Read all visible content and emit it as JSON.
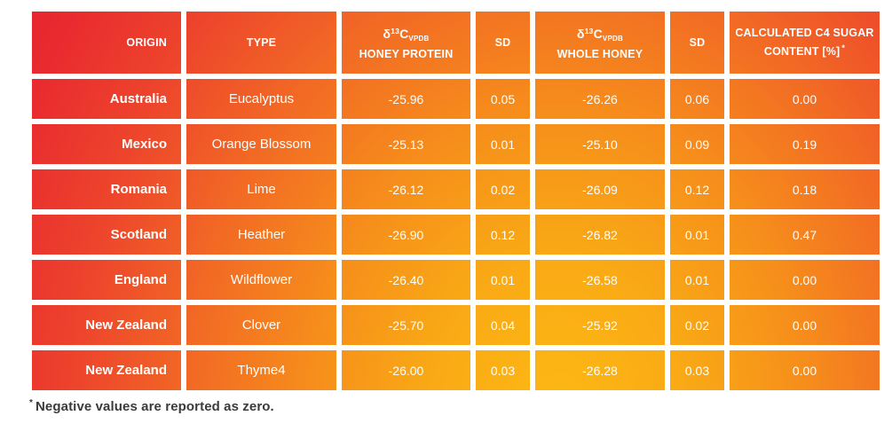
{
  "table": {
    "header": {
      "origin": "ORIGIN",
      "type": "TYPE",
      "sd": "SD",
      "delta_symbol": "δ",
      "delta_superscript": "13",
      "delta_element": "C",
      "delta_subscript": "VPDB",
      "honey_protein_line": "HONEY PROTEIN",
      "whole_honey_line": "WHOLE HONEY",
      "calculated_label": "CALCULATED C4 SUGAR CONTENT [%]",
      "calculated_footnote_symbol": "*"
    }
  },
  "chart_data": {
    "type": "table",
    "columns": [
      "ORIGIN",
      "TYPE",
      "δ13C VPDB HONEY PROTEIN",
      "SD",
      "δ13C VPDB WHOLE HONEY",
      "SD",
      "CALCULATED C4 SUGAR CONTENT [%] *"
    ],
    "rows": [
      [
        "Australia",
        "Eucalyptus",
        "-25.96",
        "0.05",
        "-26.26",
        "0.06",
        "0.00"
      ],
      [
        "Mexico",
        "Orange Blossom",
        "-25.13",
        "0.01",
        "-25.10",
        "0.09",
        "0.19"
      ],
      [
        "Romania",
        "Lime",
        "-26.12",
        "0.02",
        "-26.09",
        "0.12",
        "0.18"
      ],
      [
        "Scotland",
        "Heather",
        "-26.90",
        "0.12",
        "-26.82",
        "0.01",
        "0.47"
      ],
      [
        "England",
        "Wildflower",
        "-26.40",
        "0.01",
        "-26.58",
        "0.01",
        "0.00"
      ],
      [
        "New Zealand",
        "Clover",
        "-25.70",
        "0.04",
        "-25.92",
        "0.02",
        "0.00"
      ],
      [
        "New Zealand",
        "Thyme4",
        "-26.00",
        "0.03",
        "-26.28",
        "0.03",
        "0.00"
      ]
    ]
  },
  "footnote": {
    "symbol": "*",
    "text": "Negative values are reported as zero."
  },
  "colors": {
    "gradient_red": "#E7222F",
    "gradient_orange": "#F26B24",
    "gradient_yellow": "#FDB813",
    "cell_text": "#FFFFFF",
    "divider": "#FFFFFF",
    "footnote_text": "#3B3B3A"
  }
}
